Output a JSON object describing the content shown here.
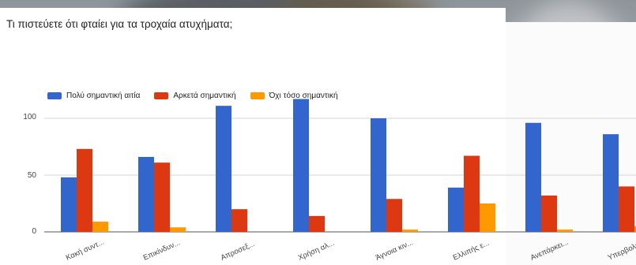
{
  "title": "Τι πιστεύετε ότι φταίει για τα τροχαία ατυχήματα;",
  "colors": {
    "s1": "#3366cc",
    "s2": "#dc3912",
    "s3": "#ff9900"
  },
  "chart_data": {
    "type": "bar",
    "categories": [
      "Κακή συντ...",
      "Επικίνδυν...",
      "Απροσεξ...",
      "Χρήση αλ...",
      "Άγνοια κιν...",
      "Ελλιπής ε...",
      "Ανεπάρκει...",
      "Υπερβολικ..."
    ],
    "series": [
      {
        "name": "Πολύ σημαντική αιτία",
        "values": [
          48,
          66,
          111,
          117,
          100,
          39,
          96,
          86
        ]
      },
      {
        "name": "Αρκετά σημαντική",
        "values": [
          73,
          61,
          20,
          14,
          29,
          67,
          32,
          40
        ]
      },
      {
        "name": "Όχι τόσο σημαντική",
        "values": [
          9,
          4,
          0,
          0,
          2,
          25,
          2,
          5
        ]
      }
    ],
    "yticks": [
      "0",
      "50",
      "100"
    ],
    "ylim": [
      0,
      120
    ],
    "grid": true,
    "legend": "top-left"
  }
}
